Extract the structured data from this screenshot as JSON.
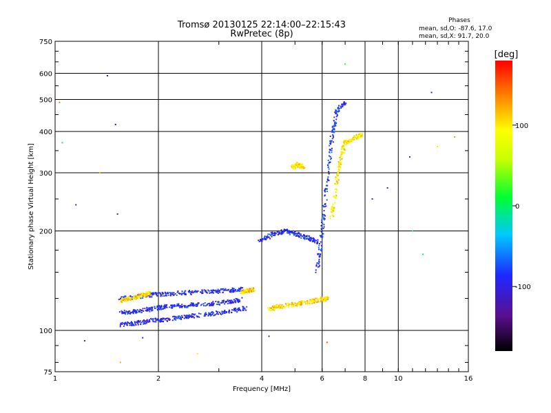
{
  "title": {
    "line1": "Tromsø 20130125 22:14:00–22:15:43",
    "line2": "RwPretec (8p)"
  },
  "phases": {
    "heading": "Phases",
    "o_line": "mean, sd,O: -87.6, 17.0",
    "x_line": "mean, sd,X:  91.7, 20.0"
  },
  "chart_data": {
    "type": "scatter",
    "xlabel": "Frequency [MHz]",
    "ylabel": "Stationary phase Virtual Height [km]",
    "x_scale": "log",
    "y_scale": "log",
    "xlim": [
      1,
      16
    ],
    "ylim": [
      75,
      750
    ],
    "x_ticks": [
      1,
      2,
      4,
      6,
      8,
      10,
      16
    ],
    "x_tick_labels": [
      "1",
      "2",
      "4",
      "6",
      "8",
      "10",
      "16"
    ],
    "x_gridlines": [
      2,
      4,
      6,
      8,
      10
    ],
    "y_ticks": [
      75,
      100,
      200,
      300,
      400,
      500,
      600,
      750
    ],
    "y_tick_labels": [
      "75",
      "100",
      "200",
      "300",
      "400",
      "500",
      "600",
      "750"
    ],
    "y_gridlines": [
      100,
      200,
      300,
      400,
      500,
      600
    ],
    "grid": true,
    "colorbar": {
      "label": "[deg]",
      "range": [
        -180,
        180
      ],
      "ticks": [
        100,
        0,
        -100
      ],
      "tick_labels": [
        "100",
        "0",
        "-100"
      ],
      "colormap": "rainbow (black-purple-blue-cyan-green-yellow-orange-red)"
    },
    "traces": [
      {
        "name": "E-layer O trace upper",
        "x": [
          1.55,
          1.7,
          1.9,
          2.1,
          2.4,
          2.8,
          3.2,
          3.5
        ],
        "y": [
          125,
          126,
          128,
          129,
          130,
          131,
          132,
          133
        ],
        "phase": -95
      },
      {
        "name": "E-layer O trace middle",
        "x": [
          1.55,
          1.7,
          1.9,
          2.1,
          2.4,
          2.8,
          3.2,
          3.5
        ],
        "y": [
          113,
          114,
          116,
          118,
          119,
          120,
          122,
          124
        ],
        "phase": -95
      },
      {
        "name": "E-layer O trace lower",
        "x": [
          1.55,
          1.7,
          1.9,
          2.1,
          2.4,
          2.8,
          3.2,
          3.6
        ],
        "y": [
          104,
          105,
          107,
          108,
          110,
          112,
          114,
          117
        ],
        "phase": -95
      },
      {
        "name": "E-layer X trace",
        "x": [
          1.55,
          1.65,
          1.8,
          1.9
        ],
        "y": [
          123,
          125,
          128,
          130
        ],
        "phase": 100
      },
      {
        "name": "E-layer X upper end",
        "x": [
          3.5,
          3.65,
          3.8
        ],
        "y": [
          130,
          132,
          133
        ],
        "phase": 110
      },
      {
        "name": "F-layer X trace",
        "x": [
          4.2,
          4.5,
          5.0,
          5.5,
          5.9,
          6.2
        ],
        "y": [
          116,
          118,
          120,
          122,
          124,
          125
        ],
        "phase": 105
      },
      {
        "name": "F1 O cloud",
        "x": [
          3.9,
          4.3,
          4.7,
          5.1,
          5.5,
          5.8
        ],
        "y": [
          185,
          195,
          200,
          195,
          190,
          185
        ],
        "phase": -90
      },
      {
        "name": "F X cusp",
        "x": [
          4.9,
          5.1,
          5.3
        ],
        "y": [
          310,
          318,
          312
        ],
        "phase": 105
      },
      {
        "name": "F O steep trace",
        "x": [
          5.8,
          6.0,
          6.2,
          6.4,
          6.6,
          7.0
        ],
        "y": [
          150,
          200,
          280,
          380,
          460,
          490
        ],
        "phase": -85
      },
      {
        "name": "F X steep trace",
        "x": [
          6.4,
          6.6,
          6.8,
          7.0,
          7.4,
          7.8
        ],
        "y": [
          220,
          280,
          330,
          370,
          380,
          390
        ],
        "phase": 95
      }
    ],
    "scattered_points": [
      {
        "x": 1.03,
        "y": 490,
        "phase": 140
      },
      {
        "x": 1.05,
        "y": 370,
        "phase": 0
      },
      {
        "x": 1.15,
        "y": 240,
        "phase": -110
      },
      {
        "x": 1.22,
        "y": 93,
        "phase": -130
      },
      {
        "x": 1.35,
        "y": 300,
        "phase": 120
      },
      {
        "x": 1.42,
        "y": 590,
        "phase": -150
      },
      {
        "x": 1.5,
        "y": 420,
        "phase": -150
      },
      {
        "x": 1.52,
        "y": 225,
        "phase": -110
      },
      {
        "x": 1.55,
        "y": 80,
        "phase": 120
      },
      {
        "x": 1.8,
        "y": 95,
        "phase": -90
      },
      {
        "x": 2.6,
        "y": 85,
        "phase": 100
      },
      {
        "x": 4.2,
        "y": 96,
        "phase": -90
      },
      {
        "x": 6.2,
        "y": 92,
        "phase": 150
      },
      {
        "x": 7.0,
        "y": 640,
        "phase": 20
      },
      {
        "x": 8.4,
        "y": 250,
        "phase": -90
      },
      {
        "x": 9.3,
        "y": 270,
        "phase": -120
      },
      {
        "x": 10.8,
        "y": 335,
        "phase": -100
      },
      {
        "x": 11.0,
        "y": 200,
        "phase": 0
      },
      {
        "x": 12.5,
        "y": 525,
        "phase": -110
      },
      {
        "x": 13.0,
        "y": 360,
        "phase": 100
      },
      {
        "x": 14.6,
        "y": 385,
        "phase": 130
      },
      {
        "x": 11.8,
        "y": 170,
        "phase": 0
      }
    ]
  }
}
